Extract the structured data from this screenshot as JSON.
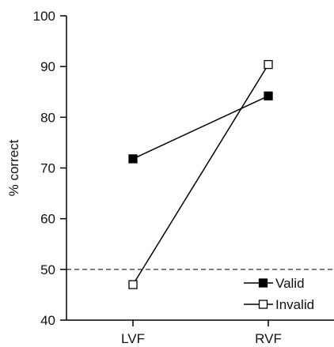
{
  "chart_data": {
    "type": "line",
    "categories": [
      "LVF",
      "RVF"
    ],
    "ylabel": "% correct",
    "xlabel": "",
    "ylim": [
      40,
      100
    ],
    "yticks": [
      40,
      50,
      60,
      70,
      80,
      90,
      100
    ],
    "reference_line": {
      "y": 50,
      "style": "dashed"
    },
    "legend_position": "bottom-right",
    "grid": false,
    "series": [
      {
        "name": "Valid",
        "values": [
          71.8,
          84.2
        ],
        "marker": "filled-square",
        "color": "#000000"
      },
      {
        "name": "Invalid",
        "values": [
          47,
          90.4
        ],
        "marker": "open-square",
        "color": "#000000"
      }
    ]
  }
}
